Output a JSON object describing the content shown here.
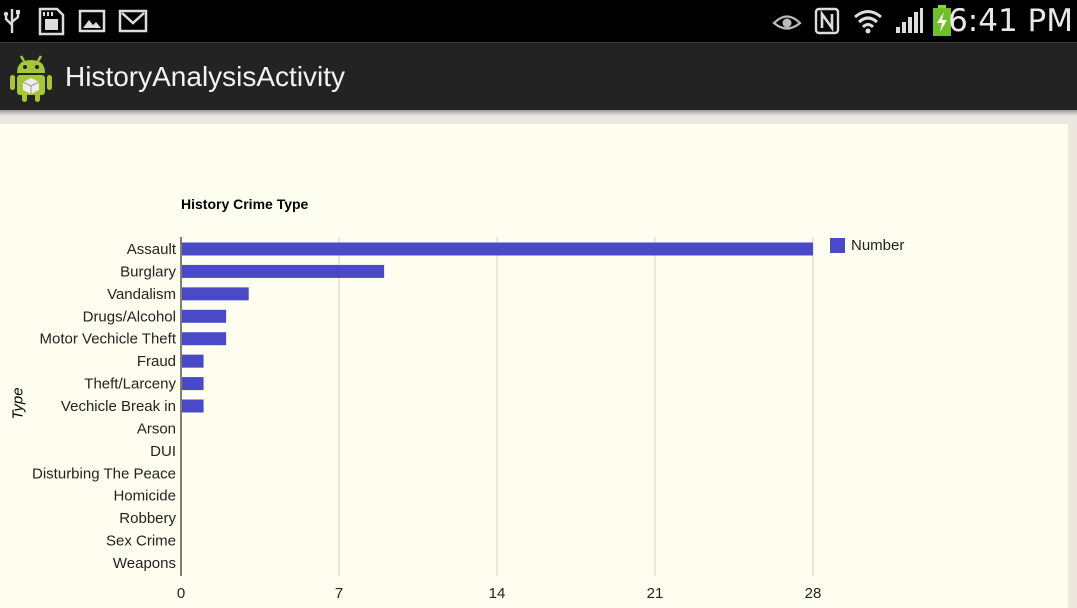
{
  "status_bar": {
    "time": "6:41 PM",
    "icons": [
      "usb-icon",
      "sd-card-icon",
      "picture-icon",
      "mail-icon",
      "eye-icon",
      "nfc-icon",
      "wifi-icon",
      "signal-icon",
      "battery-charging-icon"
    ]
  },
  "action_bar": {
    "title": "HistoryAnalysisActivity",
    "icon": "android-logo-icon"
  },
  "colors": {
    "bar": "#4a4ac8",
    "gridline": "#d4d2c4",
    "panel": "#fefef0"
  },
  "chart_data": {
    "type": "bar",
    "orientation": "horizontal",
    "title": "History Crime Type",
    "ylabel": "Type",
    "xlabel": "",
    "categories": [
      "Assault",
      "Burglary",
      "Vandalism",
      "Drugs/Alcohol",
      "Motor Vechicle Theft",
      "Fraud",
      "Theft/Larceny",
      "Vechicle Break in",
      "Arson",
      "DUI",
      "Disturbing The Peace",
      "Homicide",
      "Robbery",
      "Sex Crime",
      "Weapons"
    ],
    "series": [
      {
        "name": "Number",
        "values": [
          28,
          9,
          3,
          2,
          2,
          1,
          1,
          1,
          0,
          0,
          0,
          0,
          0,
          0,
          0
        ]
      }
    ],
    "xlim": [
      0,
      28
    ],
    "xticks": [
      "0",
      "7",
      "14",
      "21",
      "28"
    ],
    "grid": true,
    "legend": "right"
  }
}
